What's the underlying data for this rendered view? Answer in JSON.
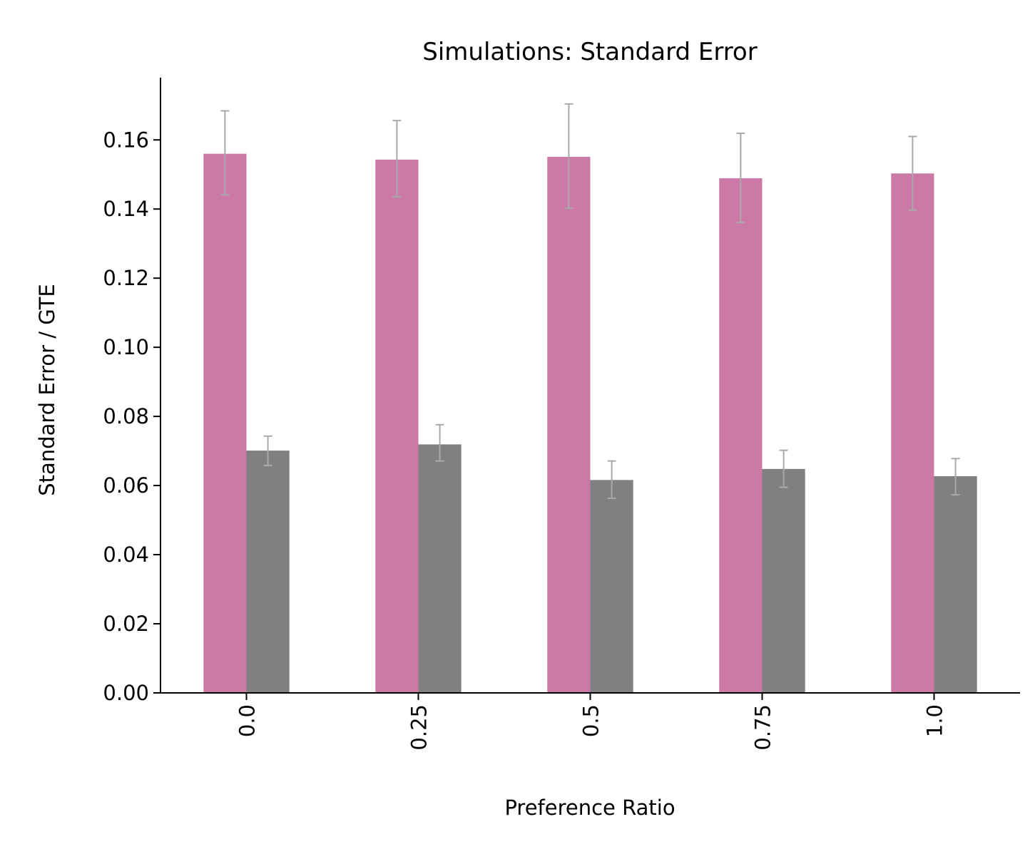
{
  "chart_data": {
    "type": "bar",
    "title": "Simulations: Standard Error",
    "xlabel": "Preference Ratio",
    "ylabel": "Standard Error / GTE",
    "categories": [
      "0.0",
      "0.25",
      "0.5",
      "0.75",
      "1.0"
    ],
    "ylim": [
      0,
      0.178
    ],
    "yticks": [
      0.0,
      0.02,
      0.04,
      0.06,
      0.08,
      0.1,
      0.12,
      0.14,
      0.16
    ],
    "ytick_labels": [
      "0.00",
      "0.02",
      "0.04",
      "0.06",
      "0.08",
      "0.10",
      "0.12",
      "0.14",
      "0.16"
    ],
    "grid": false,
    "legend": "none",
    "series": [
      {
        "color": "#cc79a7",
        "values": [
          0.156,
          0.1543,
          0.1551,
          0.1489,
          0.1503
        ],
        "err_low": [
          0.1441,
          0.1435,
          0.1402,
          0.1361,
          0.1397
        ],
        "err_high": [
          0.1684,
          0.1656,
          0.1704,
          0.1619,
          0.161
        ]
      },
      {
        "color": "#808080",
        "values": [
          0.0701,
          0.0719,
          0.0616,
          0.0648,
          0.0627
        ],
        "err_low": [
          0.0658,
          0.0671,
          0.0563,
          0.0595,
          0.0573
        ],
        "err_high": [
          0.0743,
          0.0776,
          0.0671,
          0.0702,
          0.0678
        ]
      }
    ],
    "error_bar_color": "#a9a9a9"
  }
}
